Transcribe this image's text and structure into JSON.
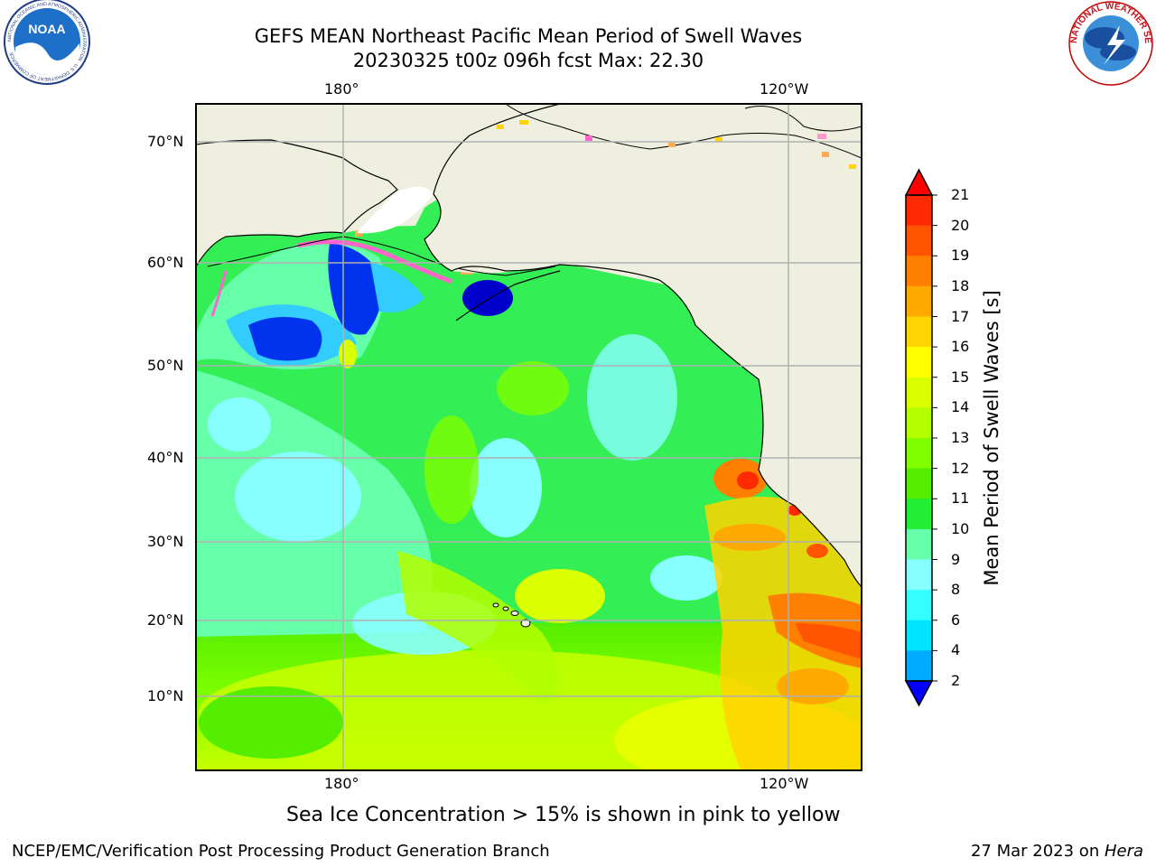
{
  "header": {
    "title_line1": "GEFS MEAN Northeast Pacific Mean Period of Swell Waves",
    "title_line2": "20230325 t00z 096h fcst   Max: 22.30"
  },
  "logos": {
    "left": "NOAA",
    "left_ring": "NATIONAL OCEANIC AND ATMOSPHERIC ADMINISTRATION · U.S. DEPARTMENT OF COMMERCE",
    "right_ring": "NATIONAL WEATHER SERVICE"
  },
  "map": {
    "top_ticks": [
      "180°",
      "120°W"
    ],
    "bottom_ticks": [
      "180°",
      "120°W"
    ],
    "left_ticks": [
      "70°N",
      "60°N",
      "50°N",
      "40°N",
      "30°N",
      "20°N",
      "10°N"
    ]
  },
  "colorbar": {
    "label": "Mean Period of Swell Waves [s]",
    "ticks": [
      "21",
      "20",
      "19",
      "18",
      "17",
      "16",
      "15",
      "14",
      "13",
      "12",
      "11",
      "10",
      "9",
      "8",
      "6",
      "4",
      "2"
    ],
    "colors_top_to_bottom": [
      "#ff2a00",
      "#ff5500",
      "#ff8000",
      "#ffaa00",
      "#ffd400",
      "#ffff00",
      "#d9ff00",
      "#b3ff00",
      "#80ff00",
      "#55ee00",
      "#22ee33",
      "#66ffaa",
      "#88ffff",
      "#33ffff",
      "#00e5ff",
      "#00aaff",
      "#0055ff"
    ],
    "over_color": "#ff0000",
    "under_color": "#0000ff"
  },
  "notes": {
    "sea_ice": "Sea Ice Concentration > 15% is shown in pink to yellow"
  },
  "footer": {
    "left": "NCEP/EMC/Verification Post Processing Product Generation Branch",
    "right_prefix": "27 Mar 2023 on ",
    "right_host": "Hera"
  }
}
